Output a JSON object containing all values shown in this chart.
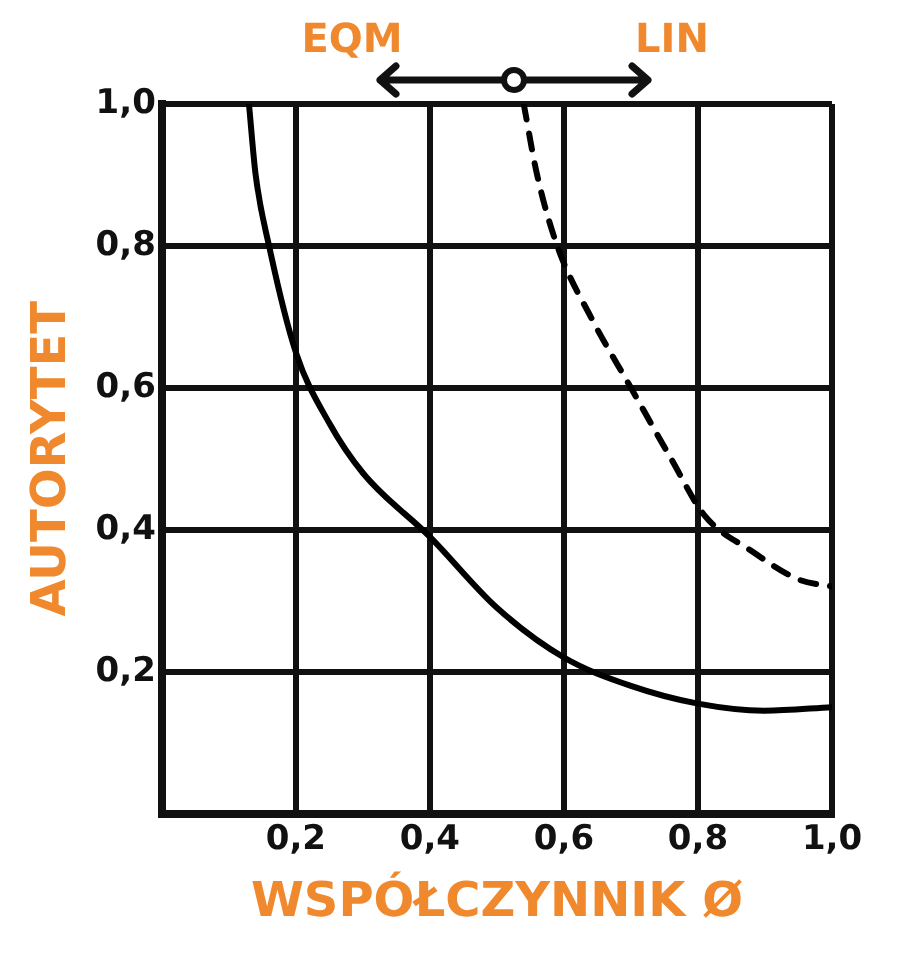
{
  "chart_data": {
    "type": "line",
    "xlabel": "WSPÓŁCZYNNIK Ø",
    "ylabel": "AUTORYTET",
    "annotations": [
      "EQM",
      "LIN"
    ],
    "xlim": [
      0,
      1
    ],
    "ylim": [
      0,
      1
    ],
    "xticks": [
      {
        "value": 0.2,
        "label": "0,2"
      },
      {
        "value": 0.4,
        "label": "0,4"
      },
      {
        "value": 0.6,
        "label": "0,6"
      },
      {
        "value": 0.8,
        "label": "0,8"
      },
      {
        "value": 1.0,
        "label": "1,0"
      }
    ],
    "yticks": [
      {
        "value": 0.2,
        "label": "0,2"
      },
      {
        "value": 0.4,
        "label": "0,4"
      },
      {
        "value": 0.6,
        "label": "0,6"
      },
      {
        "value": 0.8,
        "label": "0,8"
      },
      {
        "value": 1.0,
        "label": "1,0"
      }
    ],
    "grid": true,
    "legend": false,
    "marker": "none",
    "series": [
      {
        "color": "#000000",
        "line_style": "solid",
        "x": [
          0.13,
          0.14,
          0.16,
          0.2,
          0.25,
          0.3,
          0.4,
          0.5,
          0.6,
          0.7,
          0.8,
          0.9,
          1.0
        ],
        "values": [
          1.0,
          0.9,
          0.8,
          0.65,
          0.55,
          0.48,
          0.39,
          0.29,
          0.22,
          0.18,
          0.155,
          0.145,
          0.15
        ]
      },
      {
        "color": "#000000",
        "line_style": "dashed",
        "x": [
          0.54,
          0.56,
          0.59,
          0.64,
          0.7,
          0.76,
          0.81,
          0.88,
          0.95,
          1.0
        ],
        "values": [
          1.0,
          0.9,
          0.8,
          0.7,
          0.6,
          0.5,
          0.42,
          0.37,
          0.33,
          0.32
        ]
      }
    ]
  }
}
